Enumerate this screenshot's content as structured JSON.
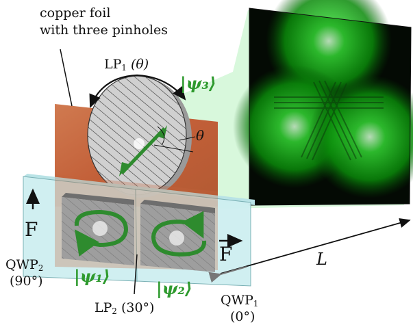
{
  "labels": {
    "foil_line1": "copper foil",
    "foil_line2": "with three pinholes",
    "lp1": "LP",
    "lp1_sub": "1",
    "lp1_arg": "(θ)",
    "psi3": "|ψ₃⟩",
    "theta": "θ",
    "psi1": "|ψ₁⟩",
    "psi2": "|ψ₂⟩",
    "f_left": "F",
    "f_right": "F",
    "qwp2": "QWP",
    "qwp2_sub": "2",
    "qwp2_angle": "(90°)",
    "qwp1": "QWP",
    "qwp1_sub": "1",
    "qwp1_angle": "(0°)",
    "lp2": "LP",
    "lp2_sub": "2",
    "lp2_arg": "(30°)",
    "distance": "L"
  },
  "colors": {
    "copper": "#c4643c",
    "glass": "#cdeef0",
    "polarizer": "#9a9a9a",
    "beam": "#a8f0b0",
    "arrow_green": "#2e8b2e",
    "screen": "#040a04"
  }
}
